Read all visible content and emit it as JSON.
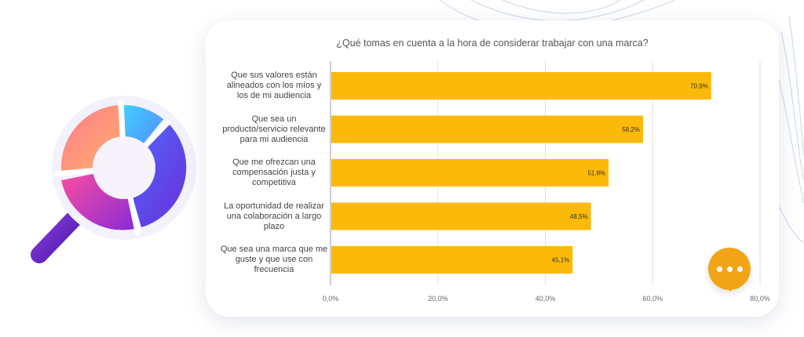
{
  "chart_data": {
    "type": "bar",
    "orientation": "horizontal",
    "title": "¿Qué tomas en cuenta a la hora de considerar trabajar con una marca?",
    "categories": [
      "Que sus valores están alineados con los míos y los de mi audiencia",
      "Que sea un producto/servicio relevante para mi audiencia",
      "Que me ofrezcan una compensación justa y competitiva",
      "La oportunidad de realizar una colaboración a largo plazo",
      "Que sea una marca que me guste y que use con frecuencia"
    ],
    "category_lines": [
      [
        "Que sus valores están",
        "alineados con los míos y",
        "los de mi audiencia"
      ],
      [
        "Que sea un",
        "producto/servicio relevante",
        "para mi audiencia"
      ],
      [
        "Que me ofrezcan una",
        "compensación justa y",
        "competitiva"
      ],
      [
        "La oportunidad de realizar",
        "una colaboración a largo",
        "plazo"
      ],
      [
        "Que sea una marca que me",
        "guste y que use con",
        "frecuencia"
      ]
    ],
    "values": [
      70.9,
      58.2,
      51.8,
      48.5,
      45.1
    ],
    "data_labels": [
      "70,9%",
      "58,2%",
      "51,8%",
      "48,5%",
      "45,1%"
    ],
    "xlim": [
      0,
      80
    ],
    "x_ticks": [
      "0,0%",
      "20,0%",
      "40,0%",
      "60,0%",
      "80,0%"
    ],
    "xlabel": "",
    "ylabel": "",
    "grid": true,
    "bar_color": "#fbb909"
  },
  "decor": {
    "magnifier_icon": "magnifier-donut-chart-icon",
    "chat_icon": "chat-bubble-ellipsis-icon",
    "accent_color": "#f1a516"
  }
}
